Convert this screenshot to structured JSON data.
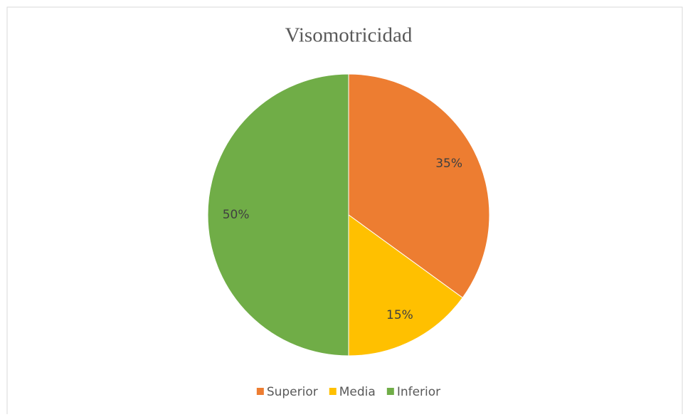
{
  "chart_data": {
    "type": "pie",
    "title": "Visomotricidad",
    "categories": [
      "Superior",
      "Media",
      "Inferior"
    ],
    "values": [
      35,
      15,
      50
    ],
    "value_labels": [
      "35%",
      "15%",
      "50%"
    ],
    "colors": [
      "#ed7d31",
      "#ffc000",
      "#70ad47"
    ],
    "legend": "bottom"
  }
}
